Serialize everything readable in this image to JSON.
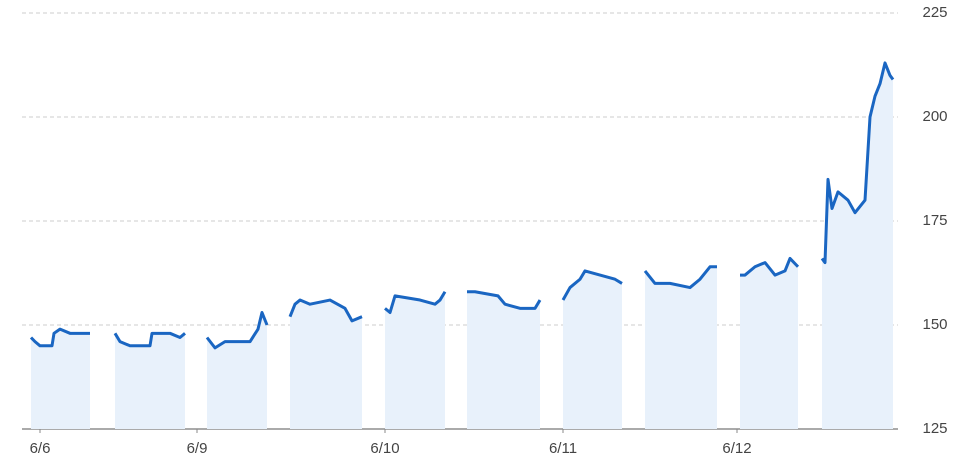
{
  "chart_data": {
    "type": "line",
    "x": [
      9,
      13,
      18,
      30,
      32,
      38,
      48,
      68,
      80,
      93,
      98,
      108,
      128,
      130,
      148,
      158,
      163,
      174,
      185,
      193,
      203,
      228,
      236,
      240,
      245,
      256,
      268,
      273,
      278,
      288,
      308,
      323,
      330,
      340,
      352,
      363,
      368,
      373,
      398,
      413,
      418,
      423,
      434,
      445,
      453,
      476,
      483,
      498,
      513,
      518,
      530,
      541,
      548,
      558,
      563,
      578,
      593,
      600,
      611,
      623,
      633,
      648,
      668,
      678,
      688,
      695,
      706,
      718,
      723,
      733,
      743,
      753,
      763,
      768,
      776,
      788,
      800,
      803,
      806,
      810,
      816,
      826,
      833,
      843,
      848,
      853,
      858,
      863,
      868,
      871
    ],
    "series": [
      {
        "color": "#1a66c2",
        "area_color": "#e8f1fb",
        "values": [
          147,
          146,
          145,
          145,
          148,
          149,
          148,
          148,
          null,
          148,
          146,
          145,
          145,
          148,
          148,
          147,
          148,
          null,
          147,
          144.5,
          146,
          146,
          149,
          153,
          150,
          null,
          152,
          155,
          156,
          155,
          156,
          154,
          151,
          152,
          null,
          154,
          153,
          157,
          156,
          155,
          156,
          158,
          null,
          158,
          158,
          157,
          155,
          154,
          154,
          156,
          null,
          156,
          159,
          161,
          163,
          162,
          161,
          160,
          null,
          163,
          160,
          160,
          159,
          161,
          164,
          164,
          null,
          162,
          162,
          164,
          165,
          162,
          163,
          166,
          164,
          null,
          166,
          165,
          185,
          178,
          182,
          180,
          177,
          180,
          200,
          205,
          208,
          213,
          210,
          209
        ]
      }
    ],
    "xlim": [
      0,
      876
    ],
    "xticks": [
      {
        "value": 18,
        "label": "6/6"
      },
      {
        "value": 175,
        "label": "6/9"
      },
      {
        "value": 363,
        "label": "6/10"
      },
      {
        "value": 541,
        "label": "6/11"
      },
      {
        "value": 715,
        "label": "6/12"
      }
    ],
    "ylim": [
      125,
      225
    ],
    "yticks": [
      125,
      150,
      175,
      200,
      225
    ],
    "grid": true
  }
}
